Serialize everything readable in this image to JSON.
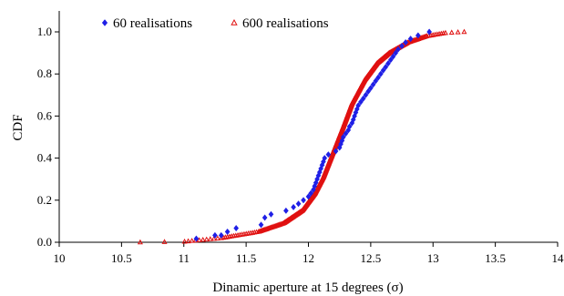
{
  "chart_data": {
    "type": "scatter",
    "xlabel": "Dinamic aperture at 15 degrees (σ)",
    "ylabel": "CDF",
    "xlim": [
      10,
      14
    ],
    "ylim": [
      0,
      1.05
    ],
    "x_ticks": [
      "10",
      "10.5",
      "11",
      "11.5",
      "12",
      "12.5",
      "13",
      "13.5",
      "14"
    ],
    "y_ticks": [
      "0.0",
      "0.2",
      "0.4",
      "0.6",
      "0.8",
      "1.0"
    ],
    "legend_position": "top-left",
    "grid": false,
    "series": [
      {
        "name": "60 realisations",
        "marker": "diamond",
        "color": "#1f1fe6",
        "points": [
          [
            11.1,
            0.017
          ],
          [
            11.25,
            0.033
          ],
          [
            11.3,
            0.033
          ],
          [
            11.35,
            0.05
          ],
          [
            11.42,
            0.067
          ],
          [
            11.62,
            0.083
          ],
          [
            11.65,
            0.117
          ],
          [
            11.7,
            0.133
          ],
          [
            11.82,
            0.15
          ],
          [
            11.88,
            0.167
          ],
          [
            11.92,
            0.183
          ],
          [
            11.96,
            0.2
          ],
          [
            12.0,
            0.217
          ],
          [
            12.02,
            0.233
          ],
          [
            12.04,
            0.25
          ],
          [
            12.05,
            0.267
          ],
          [
            12.06,
            0.283
          ],
          [
            12.07,
            0.3
          ],
          [
            12.08,
            0.317
          ],
          [
            12.09,
            0.333
          ],
          [
            12.1,
            0.35
          ],
          [
            12.11,
            0.367
          ],
          [
            12.12,
            0.383
          ],
          [
            12.13,
            0.4
          ],
          [
            12.16,
            0.417
          ],
          [
            12.22,
            0.433
          ],
          [
            12.25,
            0.45
          ],
          [
            12.26,
            0.467
          ],
          [
            12.27,
            0.483
          ],
          [
            12.28,
            0.5
          ],
          [
            12.3,
            0.517
          ],
          [
            12.32,
            0.533
          ],
          [
            12.33,
            0.55
          ],
          [
            12.35,
            0.567
          ],
          [
            12.36,
            0.583
          ],
          [
            12.37,
            0.6
          ],
          [
            12.38,
            0.617
          ],
          [
            12.39,
            0.633
          ],
          [
            12.4,
            0.65
          ],
          [
            12.42,
            0.667
          ],
          [
            12.44,
            0.683
          ],
          [
            12.46,
            0.7
          ],
          [
            12.48,
            0.717
          ],
          [
            12.5,
            0.733
          ],
          [
            12.52,
            0.75
          ],
          [
            12.54,
            0.767
          ],
          [
            12.56,
            0.783
          ],
          [
            12.58,
            0.8
          ],
          [
            12.6,
            0.817
          ],
          [
            12.62,
            0.833
          ],
          [
            12.64,
            0.85
          ],
          [
            12.66,
            0.867
          ],
          [
            12.68,
            0.883
          ],
          [
            12.7,
            0.9
          ],
          [
            12.72,
            0.917
          ],
          [
            12.75,
            0.933
          ],
          [
            12.78,
            0.95
          ],
          [
            12.82,
            0.967
          ],
          [
            12.88,
            0.983
          ],
          [
            12.97,
            1.0
          ]
        ]
      },
      {
        "name": "600 realisations",
        "marker": "triangle",
        "color": "#e01010",
        "curve": {
          "x": [
            10.65,
            11.0,
            11.3,
            11.6,
            11.8,
            11.95,
            12.05,
            12.12,
            12.2,
            12.28,
            12.35,
            12.45,
            12.55,
            12.65,
            12.8,
            12.95,
            13.1,
            13.25
          ],
          "y": [
            0.0,
            0.003,
            0.02,
            0.05,
            0.09,
            0.15,
            0.23,
            0.31,
            0.43,
            0.55,
            0.66,
            0.77,
            0.85,
            0.9,
            0.95,
            0.98,
            0.995,
            1.0
          ]
        },
        "count": 600
      }
    ]
  }
}
